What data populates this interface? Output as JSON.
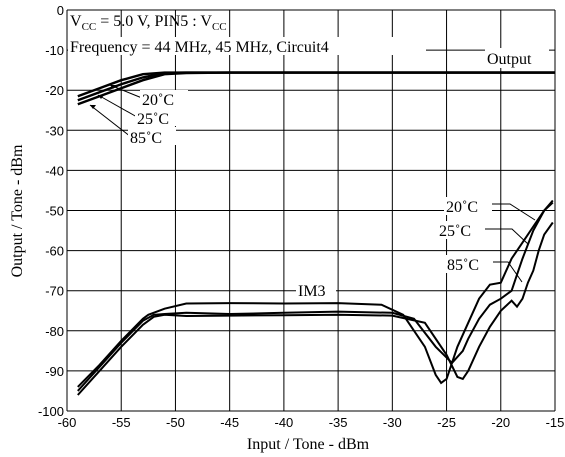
{
  "chart_data": {
    "type": "line",
    "annotation_line1": "V",
    "annotation_line1_sub": "CC",
    "annotation_line1_mid": " = 5.0 V, PIN5 : V",
    "annotation_line1_sub2": "CC",
    "annotation_line2": "Frequency = 44 MHz, 45 MHz, Circuit4",
    "xlabel": "Input / Tone - dBm",
    "ylabel": "Output / Tone - dBm",
    "xlim": [
      -60,
      -15
    ],
    "ylim": [
      -100,
      0
    ],
    "x_ticks": [
      "-60",
      "-55",
      "-50",
      "-45",
      "-40",
      "-35",
      "-30",
      "-25",
      "-20",
      "-15"
    ],
    "y_ticks": [
      "0",
      "-10",
      "-20",
      "-30",
      "-40",
      "-50",
      "-60",
      "-70",
      "-80",
      "-90",
      "-100"
    ],
    "group_labels": {
      "output": "Output",
      "im3": "IM3"
    },
    "temp_labels_output": [
      "20˚C",
      "25˚C",
      "85˚C"
    ],
    "temp_labels_im3": [
      "20˚C",
      "25˚C",
      "85˚C"
    ],
    "series": [
      {
        "name": "Output 20˚C",
        "x": [
          -59,
          -57,
          -55,
          -53,
          -51,
          -49,
          -45,
          -40,
          -35,
          -30,
          -25,
          -20,
          -15
        ],
        "y": [
          -21.5,
          -19.5,
          -17.5,
          -16,
          -15.6,
          -15.6,
          -15.6,
          -15.6,
          -15.6,
          -15.6,
          -15.6,
          -15.6,
          -15.6
        ]
      },
      {
        "name": "Output 25˚C",
        "x": [
          -59,
          -57,
          -55,
          -53,
          -51,
          -49,
          -45,
          -40,
          -35,
          -30,
          -25,
          -20,
          -15
        ],
        "y": [
          -22.5,
          -20.5,
          -18.5,
          -16.8,
          -15.7,
          -15.6,
          -15.6,
          -15.6,
          -15.6,
          -15.6,
          -15.6,
          -15.6,
          -15.6
        ]
      },
      {
        "name": "Output 85˚C",
        "x": [
          -59,
          -57,
          -55,
          -53,
          -51,
          -49,
          -45,
          -40,
          -35,
          -30,
          -25,
          -20,
          -15
        ],
        "y": [
          -23.5,
          -21.5,
          -19.5,
          -17.5,
          -16,
          -15.7,
          -15.6,
          -15.6,
          -15.6,
          -15.6,
          -15.6,
          -15.6,
          -15.6
        ]
      },
      {
        "name": "IM3 20˚C",
        "x": [
          -59,
          -57,
          -55,
          -53,
          -52.5,
          -51,
          -49,
          -45,
          -40,
          -35,
          -31,
          -29,
          -27,
          -26,
          -25.5,
          -25,
          -24,
          -22,
          -21,
          -20,
          -19,
          -18,
          -17.5,
          -17,
          -16,
          -15.2
        ],
        "y": [
          -94,
          -88.5,
          -82.5,
          -77,
          -76,
          -74.5,
          -73.2,
          -73.1,
          -73.2,
          -73.1,
          -73.5,
          -76,
          -84,
          -91,
          -93,
          -92,
          -84,
          -72,
          -68.5,
          -68,
          -62,
          -58,
          -56,
          -54,
          -50,
          -47.5
        ]
      },
      {
        "name": "IM3 25˚C",
        "x": [
          -59,
          -57,
          -55,
          -53,
          -52,
          -51,
          -49,
          -45,
          -40,
          -35,
          -30,
          -28,
          -26,
          -24.5,
          -23.5,
          -23,
          -22,
          -21,
          -20,
          -19,
          -18.5,
          -18,
          -17,
          -16,
          -15.2
        ],
        "y": [
          -95,
          -89,
          -83,
          -77.5,
          -76,
          -75.8,
          -75.5,
          -75.8,
          -75.5,
          -75.2,
          -75.5,
          -77,
          -84,
          -88,
          -85,
          -82,
          -77,
          -73.5,
          -72,
          -70,
          -66,
          -62,
          -55,
          -50,
          -48
        ]
      },
      {
        "name": "IM3 85˚C",
        "x": [
          -59,
          -57,
          -55,
          -53,
          -52,
          -51,
          -49,
          -45,
          -40,
          -35,
          -30,
          -27,
          -25,
          -24,
          -23.5,
          -23,
          -22,
          -21,
          -20,
          -19,
          -18.5,
          -18,
          -17.5,
          -17,
          -16.5,
          -16,
          -15.2
        ],
        "y": [
          -96,
          -90,
          -84,
          -78.5,
          -76.5,
          -76,
          -76.3,
          -76.2,
          -76.1,
          -76,
          -76.2,
          -78,
          -86,
          -91.5,
          -92,
          -90,
          -84,
          -79,
          -75,
          -72.5,
          -74,
          -72,
          -68,
          -65,
          -60,
          -56,
          -53
        ]
      }
    ]
  }
}
